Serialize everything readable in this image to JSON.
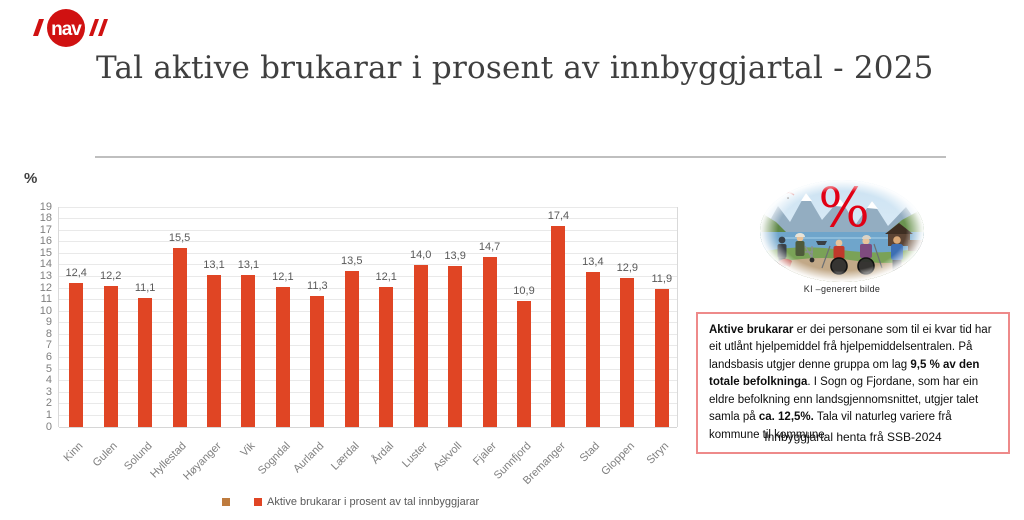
{
  "brand": {
    "logo_text": "nav",
    "logo_color": "#D01111"
  },
  "title": "Tal aktive brukarar i prosent av innbyggjartal - 2025",
  "chart_data": {
    "type": "bar",
    "title": "Tal aktive brukarar i prosent av innbyggjartal - 2025",
    "ylabel": "%",
    "xlabel": "",
    "ylim": [
      0,
      19
    ],
    "ytick_step": 1,
    "grid": true,
    "categories": [
      "Kinn",
      "Gulen",
      "Solund",
      "Hyllestad",
      "Høyanger",
      "Vik",
      "Sogndal",
      "Aurland",
      "Lærdal",
      "Årdal",
      "Luster",
      "Askvoll",
      "Fjaler",
      "Sunnfjord",
      "Bremanger",
      "Stad",
      "Gloppen",
      "Stryn"
    ],
    "values": [
      12.4,
      12.2,
      11.1,
      15.5,
      13.1,
      13.1,
      12.1,
      11.3,
      13.5,
      12.1,
      14.0,
      13.9,
      14.7,
      10.9,
      17.4,
      13.4,
      12.9,
      11.9
    ],
    "value_labels": [
      "12,4",
      "12,2",
      "11,1",
      "15,5",
      "13,1",
      "13,1",
      "12,1",
      "11,3",
      "13,5",
      "12,1",
      "14,0",
      "13,9",
      "14,7",
      "10,9",
      "17,4",
      "13,4",
      "12,9",
      "11,9"
    ],
    "bar_color": "#E04524",
    "legend_position": "bottom",
    "legend": [
      {
        "label": "",
        "color": "#BE7B3E"
      },
      {
        "label": "Aktive brukarar i prosent av tal innbyggjarar",
        "color": "#E04524"
      }
    ]
  },
  "image_panel": {
    "overlay_symbol": "%",
    "overlay_color": "#E10014",
    "caption": "KI –generert bilde"
  },
  "infobox": {
    "border_color": "#EE8A8A",
    "segments": [
      {
        "text": "Aktive brukarar",
        "bold": true
      },
      {
        "text": " er dei personane som til ei kvar tid har eit utlånt hjelpemiddel frå hjelpemiddelsentralen. På landsbasis utgjer denne gruppa om lag ",
        "bold": false
      },
      {
        "text": "9,5 % av den totale befolkninga",
        "bold": true
      },
      {
        "text": ". I Sogn og Fjordane, som har ein eldre befolkning enn landsgjennomsnittet, utgjer talet samla på ",
        "bold": false
      },
      {
        "text": "ca. 12,5%.",
        "bold": true
      },
      {
        "text": " Tala vil naturleg variere frå kommune til kommune.",
        "bold": false
      }
    ]
  },
  "source_note": "Innbyggjartal henta frå SSB-2024"
}
